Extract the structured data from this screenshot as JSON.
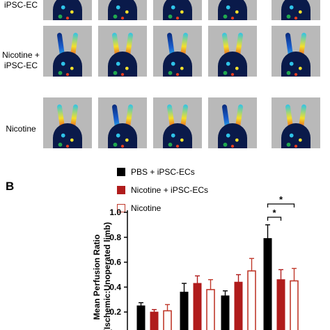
{
  "panel_b_label": "B",
  "row_labels": {
    "row1_partial": "iPSC-EC",
    "row2": [
      "Nicotine +",
      "iPSC-EC"
    ],
    "row3": "Nicotine"
  },
  "colors": {
    "pbs": "#000000",
    "nicotine_ipsc": "#b01c1c",
    "nicotine": "#c0392b"
  },
  "chart_data": {
    "type": "bar",
    "ylabel": "Mean Perfusion Ratio\n(Ischemic:Unoperated limb)",
    "ylim": [
      0.0,
      1.0
    ],
    "yticks": [
      "0.2",
      "0.4",
      "0.6",
      "0.8",
      "1.0"
    ],
    "ytick_values": [
      0.2,
      0.4,
      0.6,
      0.8,
      1.0
    ],
    "legend_placement": "top",
    "series": [
      {
        "name": "PBS + iPSC-ECs",
        "values": [
          0.25,
          0.36,
          0.33,
          0.79
        ],
        "errors": [
          0.025,
          0.07,
          0.04,
          0.11
        ]
      },
      {
        "name": "Nicotine + iPSC-ECs",
        "values": [
          0.2,
          0.43,
          0.44,
          0.46
        ],
        "errors": [
          0.02,
          0.06,
          0.06,
          0.08
        ]
      },
      {
        "name": "Nicotine",
        "values": [
          0.21,
          0.38,
          0.53,
          0.45
        ],
        "errors": [
          0.05,
          0.08,
          0.1,
          0.1
        ]
      }
    ],
    "annotations": [
      "*",
      "*"
    ]
  }
}
